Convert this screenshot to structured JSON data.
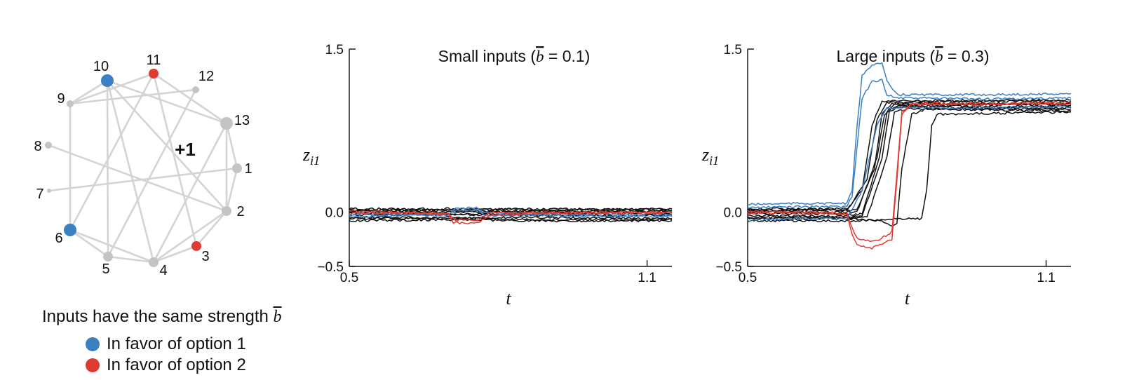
{
  "colors": {
    "option1": "#3b7fc4",
    "option2": "#e03a32",
    "neutral": "#c4c4c4",
    "edge": "#d4d4d4",
    "sign": "#f08cc0",
    "trace": "#111111"
  },
  "network": {
    "sign_label": "+1",
    "nodes": [
      {
        "id": "10",
        "type": "option1",
        "size": "large"
      },
      {
        "id": "11",
        "type": "option2",
        "size": "medium"
      },
      {
        "id": "12",
        "type": "neutral",
        "size": "small"
      },
      {
        "id": "13",
        "type": "neutral",
        "size": "large"
      },
      {
        "id": "1",
        "type": "neutral",
        "size": "medium"
      },
      {
        "id": "2",
        "type": "neutral",
        "size": "medium"
      },
      {
        "id": "3",
        "type": "option2",
        "size": "medium"
      },
      {
        "id": "4",
        "type": "neutral",
        "size": "medium"
      },
      {
        "id": "5",
        "type": "neutral",
        "size": "medium"
      },
      {
        "id": "6",
        "type": "option1",
        "size": "large"
      },
      {
        "id": "7",
        "type": "neutral",
        "size": "tiny"
      },
      {
        "id": "8",
        "type": "neutral",
        "size": "small"
      },
      {
        "id": "9",
        "type": "neutral",
        "size": "small"
      }
    ],
    "edges": [
      [
        "10",
        "9"
      ],
      [
        "10",
        "2"
      ],
      [
        "10",
        "4"
      ],
      [
        "10",
        "5"
      ],
      [
        "10",
        "13"
      ],
      [
        "11",
        "9"
      ],
      [
        "11",
        "6"
      ],
      [
        "11",
        "13"
      ],
      [
        "11",
        "3"
      ],
      [
        "12",
        "9"
      ],
      [
        "12",
        "5"
      ],
      [
        "13",
        "1"
      ],
      [
        "13",
        "2"
      ],
      [
        "13",
        "4"
      ],
      [
        "1",
        "2"
      ],
      [
        "1",
        "7"
      ],
      [
        "2",
        "3"
      ],
      [
        "2",
        "8"
      ],
      [
        "2",
        "4"
      ],
      [
        "3",
        "4"
      ],
      [
        "4",
        "5"
      ],
      [
        "4",
        "6"
      ],
      [
        "6",
        "9"
      ],
      [
        "6",
        "5"
      ]
    ]
  },
  "legend": {
    "caption_prefix": "Inputs have the same strength ",
    "caption_symbol": "b",
    "items": [
      {
        "label": "In favor of option 1",
        "color_key": "option1"
      },
      {
        "label": "In favor of option 2",
        "color_key": "option2"
      }
    ]
  },
  "chart_data": [
    {
      "type": "line",
      "title": "Small inputs (b̅ = 0.1)",
      "title_prefix": "Small inputs (",
      "title_symbol": "b",
      "title_suffix": " = 0.1)",
      "xlabel": "t",
      "ylabel": "z",
      "ylabel_sub": "i1",
      "xlim": [
        0.5,
        1.15
      ],
      "ylim": [
        -0.5,
        1.5
      ],
      "xticks": [
        "0.5",
        "1.1"
      ],
      "xtick_values": [
        0.5,
        1.1
      ],
      "yticks": [
        "−0.5",
        "0.0",
        "1.5"
      ],
      "ytick_values": [
        -0.5,
        0.0,
        1.5
      ],
      "series": [
        {
          "color_key": "option1",
          "points": [
            [
              0.5,
              -0.04
            ],
            [
              0.55,
              -0.04
            ],
            [
              0.6,
              -0.03
            ],
            [
              0.7,
              -0.03
            ],
            [
              0.71,
              0.03
            ],
            [
              0.76,
              0.04
            ],
            [
              0.77,
              -0.03
            ],
            [
              0.85,
              -0.03
            ],
            [
              1.0,
              -0.04
            ],
            [
              1.15,
              -0.04
            ]
          ]
        },
        {
          "color_key": "option1",
          "points": [
            [
              0.5,
              -0.02
            ],
            [
              0.6,
              -0.02
            ],
            [
              0.7,
              -0.02
            ],
            [
              0.71,
              0.01
            ],
            [
              0.76,
              0.02
            ],
            [
              0.77,
              -0.01
            ],
            [
              0.9,
              -0.02
            ],
            [
              1.15,
              -0.02
            ]
          ]
        },
        {
          "color_key": "option2",
          "points": [
            [
              0.5,
              -0.01
            ],
            [
              0.6,
              -0.01
            ],
            [
              0.7,
              -0.02
            ],
            [
              0.71,
              -0.1
            ],
            [
              0.76,
              -0.1
            ],
            [
              0.78,
              -0.03
            ],
            [
              0.9,
              -0.01
            ],
            [
              1.15,
              -0.01
            ]
          ]
        },
        {
          "color_key": "option2",
          "points": [
            [
              0.5,
              0.01
            ],
            [
              0.6,
              0.0
            ],
            [
              0.7,
              -0.01
            ],
            [
              0.71,
              -0.07
            ],
            [
              0.76,
              -0.07
            ],
            [
              0.78,
              -0.01
            ],
            [
              0.9,
              0.0
            ],
            [
              1.15,
              0.0
            ]
          ]
        },
        {
          "color_key": "trace",
          "points": [
            [
              0.5,
              0.03
            ],
            [
              0.7,
              0.03
            ],
            [
              0.9,
              0.02
            ],
            [
              1.15,
              0.03
            ]
          ]
        },
        {
          "color_key": "trace",
          "points": [
            [
              0.5,
              0.02
            ],
            [
              0.7,
              0.02
            ],
            [
              0.9,
              0.03
            ],
            [
              1.15,
              0.02
            ]
          ]
        },
        {
          "color_key": "trace",
          "points": [
            [
              0.5,
              0.01
            ],
            [
              0.7,
              0.01
            ],
            [
              0.9,
              0.0
            ],
            [
              1.15,
              0.01
            ]
          ]
        },
        {
          "color_key": "trace",
          "points": [
            [
              0.5,
              0.0
            ],
            [
              0.7,
              0.0
            ],
            [
              0.9,
              0.01
            ],
            [
              1.15,
              0.0
            ]
          ]
        },
        {
          "color_key": "trace",
          "points": [
            [
              0.5,
              -0.01
            ],
            [
              0.7,
              -0.02
            ],
            [
              0.9,
              -0.01
            ],
            [
              1.15,
              -0.02
            ]
          ]
        },
        {
          "color_key": "trace",
          "points": [
            [
              0.5,
              -0.03
            ],
            [
              0.7,
              -0.02
            ],
            [
              0.9,
              -0.03
            ],
            [
              1.15,
              -0.03
            ]
          ]
        },
        {
          "color_key": "trace",
          "points": [
            [
              0.5,
              -0.05
            ],
            [
              0.7,
              -0.05
            ],
            [
              0.9,
              -0.05
            ],
            [
              1.15,
              -0.06
            ]
          ]
        },
        {
          "color_key": "trace",
          "points": [
            [
              0.5,
              -0.06
            ],
            [
              0.7,
              -0.06
            ],
            [
              0.9,
              -0.07
            ],
            [
              1.15,
              -0.07
            ]
          ]
        },
        {
          "color_key": "trace",
          "points": [
            [
              0.5,
              -0.08
            ],
            [
              0.7,
              -0.07
            ],
            [
              0.9,
              -0.08
            ],
            [
              1.15,
              -0.08
            ]
          ]
        }
      ]
    },
    {
      "type": "line",
      "title": "Large inputs (b̅ = 0.3)",
      "title_prefix": "Large inputs (",
      "title_symbol": "b",
      "title_suffix": " = 0.3)",
      "xlabel": "t",
      "ylabel": "z",
      "ylabel_sub": "i1",
      "xlim": [
        0.5,
        1.15
      ],
      "ylim": [
        -0.5,
        1.5
      ],
      "xticks": [
        "0.5",
        "1.1"
      ],
      "xtick_values": [
        0.5,
        1.1
      ],
      "yticks": [
        "−0.5",
        "0.0",
        "1.5"
      ],
      "ytick_values": [
        -0.5,
        0.0,
        1.5
      ],
      "series": [
        {
          "color_key": "option1",
          "points": [
            [
              0.5,
              0.07
            ],
            [
              0.6,
              0.08
            ],
            [
              0.7,
              0.08
            ],
            [
              0.71,
              0.2
            ],
            [
              0.72,
              0.8
            ],
            [
              0.73,
              1.25
            ],
            [
              0.75,
              1.36
            ],
            [
              0.77,
              1.37
            ],
            [
              0.78,
              1.2
            ],
            [
              0.8,
              1.08
            ],
            [
              1.0,
              1.08
            ],
            [
              1.15,
              1.09
            ]
          ]
        },
        {
          "color_key": "option1",
          "points": [
            [
              0.5,
              0.04
            ],
            [
              0.6,
              0.05
            ],
            [
              0.7,
              0.05
            ],
            [
              0.71,
              0.15
            ],
            [
              0.72,
              0.6
            ],
            [
              0.73,
              1.05
            ],
            [
              0.75,
              1.2
            ],
            [
              0.77,
              1.22
            ],
            [
              0.78,
              1.08
            ],
            [
              0.8,
              1.05
            ],
            [
              1.0,
              1.04
            ],
            [
              1.15,
              1.05
            ]
          ]
        },
        {
          "color_key": "option1",
          "points": [
            [
              0.5,
              -0.08
            ],
            [
              0.6,
              -0.06
            ],
            [
              0.7,
              -0.06
            ],
            [
              0.73,
              0.2
            ],
            [
              0.76,
              0.8
            ],
            [
              0.78,
              0.96
            ],
            [
              1.0,
              0.96
            ],
            [
              1.15,
              0.97
            ]
          ]
        },
        {
          "color_key": "option2",
          "points": [
            [
              0.5,
              -0.01
            ],
            [
              0.6,
              -0.01
            ],
            [
              0.7,
              -0.02
            ],
            [
              0.71,
              -0.2
            ],
            [
              0.72,
              -0.3
            ],
            [
              0.75,
              -0.33
            ],
            [
              0.77,
              -0.3
            ],
            [
              0.79,
              -0.25
            ],
            [
              0.8,
              0.3
            ],
            [
              0.81,
              0.9
            ],
            [
              0.83,
              1.0
            ],
            [
              1.0,
              1.0
            ],
            [
              1.15,
              1.01
            ]
          ]
        },
        {
          "color_key": "option2",
          "points": [
            [
              0.5,
              0.01
            ],
            [
              0.6,
              0.0
            ],
            [
              0.7,
              -0.01
            ],
            [
              0.71,
              -0.15
            ],
            [
              0.72,
              -0.24
            ],
            [
              0.75,
              -0.27
            ],
            [
              0.77,
              -0.24
            ],
            [
              0.79,
              -0.18
            ],
            [
              0.8,
              0.35
            ],
            [
              0.81,
              0.92
            ],
            [
              0.83,
              0.99
            ],
            [
              1.0,
              0.99
            ],
            [
              1.15,
              1.0
            ]
          ]
        },
        {
          "color_key": "trace",
          "points": [
            [
              0.5,
              0.03
            ],
            [
              0.7,
              0.03
            ],
            [
              0.73,
              0.2
            ],
            [
              0.75,
              0.8
            ],
            [
              0.77,
              1.02
            ],
            [
              1.0,
              1.03
            ],
            [
              1.15,
              1.03
            ]
          ]
        },
        {
          "color_key": "trace",
          "points": [
            [
              0.5,
              0.02
            ],
            [
              0.7,
              0.02
            ],
            [
              0.74,
              0.3
            ],
            [
              0.76,
              0.85
            ],
            [
              0.78,
              1.01
            ],
            [
              1.0,
              1.02
            ],
            [
              1.15,
              1.02
            ]
          ]
        },
        {
          "color_key": "trace",
          "points": [
            [
              0.5,
              0.01
            ],
            [
              0.72,
              0.02
            ],
            [
              0.755,
              0.4
            ],
            [
              0.77,
              0.9
            ],
            [
              0.79,
              1.0
            ],
            [
              1.0,
              1.0
            ],
            [
              1.15,
              1.0
            ]
          ]
        },
        {
          "color_key": "trace",
          "points": [
            [
              0.5,
              0.0
            ],
            [
              0.72,
              0.0
            ],
            [
              0.76,
              0.5
            ],
            [
              0.775,
              0.9
            ],
            [
              0.795,
              0.99
            ],
            [
              1.0,
              0.99
            ],
            [
              1.15,
              0.99
            ]
          ]
        },
        {
          "color_key": "trace",
          "points": [
            [
              0.5,
              -0.01
            ],
            [
              0.73,
              -0.02
            ],
            [
              0.765,
              0.5
            ],
            [
              0.78,
              0.92
            ],
            [
              0.8,
              0.98
            ],
            [
              1.0,
              0.97
            ],
            [
              1.15,
              0.98
            ]
          ]
        },
        {
          "color_key": "trace",
          "points": [
            [
              0.5,
              -0.03
            ],
            [
              0.73,
              -0.04
            ],
            [
              0.77,
              0.5
            ],
            [
              0.785,
              0.93
            ],
            [
              0.81,
              0.97
            ],
            [
              1.0,
              0.96
            ],
            [
              1.15,
              0.96
            ]
          ]
        },
        {
          "color_key": "trace",
          "points": [
            [
              0.5,
              -0.05
            ],
            [
              0.74,
              -0.05
            ],
            [
              0.78,
              0.5
            ],
            [
              0.795,
              0.92
            ],
            [
              0.82,
              0.95
            ],
            [
              1.0,
              0.95
            ],
            [
              1.15,
              0.95
            ]
          ]
        },
        {
          "color_key": "trace",
          "points": [
            [
              0.5,
              -0.06
            ],
            [
              0.7,
              -0.06
            ],
            [
              0.77,
              -0.08
            ],
            [
              0.79,
              -0.12
            ],
            [
              0.8,
              -0.1
            ],
            [
              0.81,
              0.4
            ],
            [
              0.83,
              0.9
            ],
            [
              0.86,
              0.95
            ],
            [
              1.0,
              0.94
            ],
            [
              1.15,
              0.93
            ]
          ]
        },
        {
          "color_key": "trace",
          "points": [
            [
              0.5,
              -0.08
            ],
            [
              0.7,
              -0.08
            ],
            [
              0.85,
              -0.06
            ],
            [
              0.86,
              0.2
            ],
            [
              0.87,
              0.8
            ],
            [
              0.88,
              0.9
            ],
            [
              1.0,
              0.91
            ],
            [
              1.15,
              0.92
            ]
          ]
        }
      ]
    }
  ]
}
